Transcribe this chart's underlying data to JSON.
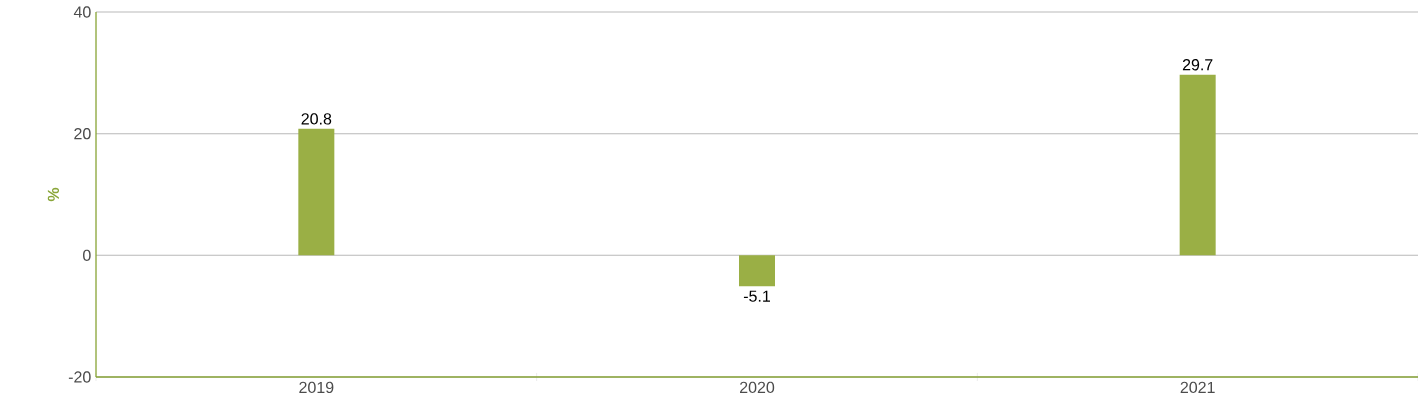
{
  "chart_data": {
    "type": "bar",
    "ylabel": "%",
    "categories": [
      "2019",
      "2020",
      "2021"
    ],
    "values": [
      20.8,
      -5.1,
      29.7
    ],
    "color": "#9aaf45",
    "ylim": [
      -20,
      40
    ],
    "yticks": [
      -20,
      0,
      20,
      40
    ],
    "grid": "y",
    "data_labels": true
  }
}
